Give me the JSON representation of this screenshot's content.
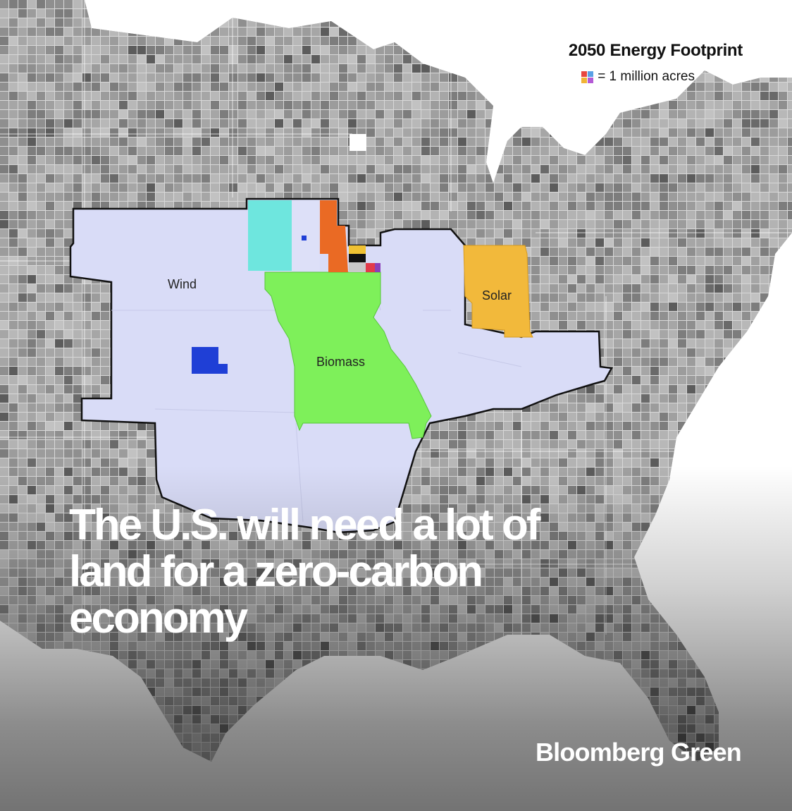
{
  "legend": {
    "title": "2050 Energy Footprint",
    "unit_text": "= 1 million acres",
    "swatch_colors": [
      "#e8473f",
      "#5aa0e6",
      "#f1b436",
      "#b45ad6"
    ]
  },
  "regions": [
    {
      "label": "Wind",
      "color": "#d9dcf7"
    },
    {
      "label": "Biomass",
      "color": "#7ef05a"
    },
    {
      "label": "Solar",
      "color": "#f2b93b"
    }
  ],
  "minor_sources": [
    {
      "color": "#6ee6de"
    },
    {
      "color": "#ea6a24"
    },
    {
      "color": "#f0c233"
    },
    {
      "color": "#111111"
    },
    {
      "color": "#e23a4a"
    },
    {
      "color": "#8b3fb8"
    },
    {
      "color": "#1f3fd6"
    }
  ],
  "headline": {
    "line1": "The U.S. will need a lot of",
    "line2": "land for a zero-carbon",
    "line3": "economy"
  },
  "brand": "Bloomberg Green"
}
